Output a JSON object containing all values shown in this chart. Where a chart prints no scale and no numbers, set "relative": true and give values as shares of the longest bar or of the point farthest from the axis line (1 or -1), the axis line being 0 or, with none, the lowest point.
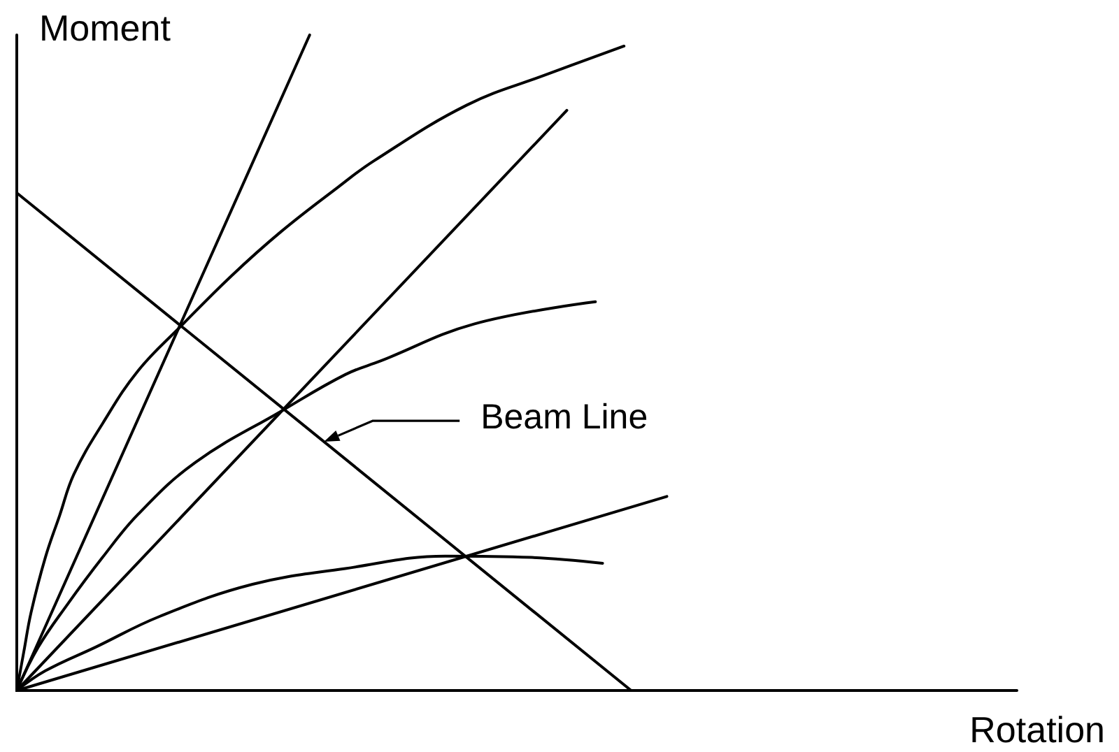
{
  "chart_data": {
    "type": "line",
    "relative": true,
    "xlabel": "Rotation",
    "ylabel": "Moment",
    "categories": [
      null,
      null,
      null,
      null,
      null,
      null,
      null,
      null,
      null,
      null,
      null,
      null,
      null,
      null,
      null,
      null,
      null,
      null,
      null,
      null,
      null,
      null,
      null,
      null,
      null,
      null,
      null,
      null,
      null,
      null,
      null,
      null,
      null,
      null,
      null,
      null,
      null,
      null,
      null,
      null,
      null,
      null,
      null,
      null,
      null,
      null,
      null,
      null,
      null,
      null,
      null,
      null,
      null,
      null,
      null,
      null,
      null,
      null,
      null,
      null,
      null,
      null,
      null,
      null,
      null,
      null,
      null,
      null,
      null,
      null,
      null,
      null,
      null,
      null,
      null,
      null,
      null,
      null,
      null,
      null,
      null,
      null,
      null,
      null,
      null,
      null,
      null,
      null,
      null,
      null,
      null,
      null,
      null,
      null,
      null,
      null,
      null,
      null,
      null,
      null,
      null,
      null,
      null,
      null,
      null,
      null,
      null,
      null,
      null,
      null,
      null,
      null,
      null,
      null,
      null,
      null,
      null,
      null,
      null,
      null,
      null,
      null,
      null,
      null,
      null,
      null,
      null,
      null,
      null,
      null,
      null,
      null,
      null,
      null,
      null,
      null,
      null,
      null,
      null,
      null,
      null
    ],
    "series": [
      {
        "color": "#000000",
        "values": [
          0,
          null,
          null,
          null,
          null,
          null,
          null,
          null,
          null,
          null,
          null,
          null,
          null,
          null,
          null,
          null,
          null,
          null,
          null,
          null,
          null,
          null,
          null,
          null,
          null,
          null,
          null,
          null,
          null,
          null,
          null,
          null,
          null,
          null,
          null,
          null,
          null,
          null,
          null,
          null,
          null,
          1,
          null,
          null,
          null,
          null,
          null,
          null,
          null,
          null,
          null,
          null,
          null,
          null,
          null,
          null,
          null,
          null,
          null,
          null,
          null,
          null,
          null,
          null,
          null,
          null,
          null,
          null,
          null,
          null,
          null,
          null,
          null,
          null,
          null,
          null,
          null,
          null,
          null,
          null,
          null,
          null,
          null,
          null,
          null,
          null,
          null,
          null,
          null,
          null,
          null,
          null,
          null,
          null,
          null,
          null,
          null,
          null,
          null,
          null,
          null,
          null,
          null,
          null,
          null,
          null,
          null,
          null,
          null,
          null,
          null,
          null,
          null,
          null,
          null,
          null,
          null,
          null,
          null,
          null,
          null,
          null,
          null,
          null,
          null,
          null,
          null,
          null,
          null,
          null,
          null,
          null,
          null,
          null,
          null,
          null,
          null,
          null,
          null,
          null,
          null
        ]
      },
      {
        "color": "#000000",
        "values": [
          0,
          0.06,
          0.119,
          null,
          0.203,
          null,
          0.267,
          null,
          0.33,
          null,
          null,
          null,
          0.407,
          null,
          null,
          null,
          null,
          0.488,
          null,
          null,
          null,
          null,
          null,
          0.556,
          null,
          null,
          null,
          null,
          null,
          null,
          0.632,
          null,
          null,
          null,
          null,
          null,
          null,
          0.7,
          null,
          null,
          null,
          null,
          null,
          null,
          null,
          0.768,
          null,
          null,
          null,
          null,
          0.808,
          null,
          null,
          null,
          null,
          null,
          null,
          null,
          null,
          null,
          null,
          null,
          null,
          0.893,
          null,
          null,
          null,
          null,
          null,
          null,
          null,
          null,
          null,
          null,
          0.939,
          null,
          null,
          null,
          null,
          null,
          null,
          null,
          null,
          null,
          null,
          0.983,
          null,
          null,
          null,
          null,
          null,
          null,
          null,
          null,
          null,
          null,
          null,
          null,
          null,
          null,
          null,
          null,
          null,
          null,
          null,
          null,
          null,
          null,
          null,
          null,
          null,
          null,
          null,
          null,
          null,
          null,
          null,
          null,
          null,
          null,
          null,
          null,
          null,
          null,
          null,
          null,
          null,
          null,
          null,
          null,
          null,
          null,
          null,
          null,
          null,
          null,
          null,
          null,
          null,
          null,
          null
        ]
      },
      {
        "color": "#000000",
        "values": [
          0,
          null,
          null,
          null,
          null,
          null,
          null,
          null,
          null,
          null,
          null,
          null,
          null,
          null,
          null,
          null,
          null,
          null,
          null,
          null,
          null,
          null,
          null,
          null,
          null,
          null,
          null,
          null,
          null,
          null,
          null,
          null,
          null,
          null,
          null,
          null,
          null,
          null,
          null,
          null,
          null,
          null,
          null,
          null,
          null,
          null,
          null,
          null,
          null,
          null,
          null,
          null,
          null,
          null,
          null,
          null,
          null,
          null,
          null,
          null,
          null,
          null,
          null,
          null,
          null,
          null,
          null,
          null,
          null,
          null,
          null,
          null,
          null,
          null,
          null,
          null,
          null,
          0.885,
          null,
          null,
          null,
          null,
          null,
          null,
          null,
          null,
          null,
          null,
          null,
          null,
          null,
          null,
          null,
          null,
          null,
          null,
          null,
          null,
          null,
          null,
          null,
          null,
          null,
          null,
          null,
          null,
          null,
          null,
          null,
          null,
          null,
          null,
          null,
          null,
          null,
          null,
          null,
          null,
          null,
          null,
          null,
          null,
          null,
          null,
          null,
          null,
          null,
          null,
          null,
          null,
          null,
          null,
          null,
          null,
          null,
          null,
          null,
          null,
          null,
          null,
          null
        ]
      },
      {
        "color": "#000000",
        "values": [
          0,
          null,
          null,
          0.066,
          null,
          null,
          null,
          0.13,
          null,
          null,
          null,
          null,
          0.203,
          null,
          null,
          null,
          null,
          0.269,
          null,
          null,
          null,
          null,
          null,
          null,
          null,
          0.348,
          null,
          null,
          null,
          null,
          null,
          null,
          null,
          null,
          null,
          null,
          null,
          0.426,
          null,
          null,
          null,
          null,
          null,
          null,
          null,
          null,
          0.482,
          null,
          null,
          null,
          null,
          0.503,
          null,
          null,
          null,
          null,
          null,
          null,
          null,
          null,
          null,
          null,
          null,
          null,
          0.559,
          null,
          null,
          null,
          null,
          null,
          null,
          null,
          null,
          null,
          null,
          null,
          null,
          null,
          null,
          null,
          null,
          0.593,
          null,
          null,
          null,
          null,
          null,
          null,
          null,
          null,
          null,
          null,
          null,
          null,
          null,
          null,
          null,
          null,
          null,
          null,
          null,
          null,
          null,
          null,
          null,
          null,
          null,
          null,
          null,
          null,
          null,
          null,
          null,
          null,
          null,
          null,
          null,
          null,
          null,
          null,
          null,
          null,
          null,
          null,
          null,
          null,
          null,
          null,
          null,
          null,
          null,
          null,
          null,
          null,
          null,
          null,
          null,
          null,
          null,
          null,
          null
        ]
      },
      {
        "color": "#000000",
        "values": [
          0,
          null,
          null,
          null,
          null,
          null,
          null,
          null,
          null,
          null,
          null,
          null,
          null,
          null,
          null,
          null,
          null,
          null,
          null,
          null,
          null,
          null,
          null,
          null,
          null,
          null,
          null,
          null,
          null,
          null,
          null,
          null,
          null,
          null,
          null,
          null,
          null,
          null,
          null,
          null,
          null,
          null,
          null,
          null,
          null,
          null,
          null,
          null,
          null,
          null,
          null,
          null,
          null,
          null,
          null,
          null,
          null,
          null,
          null,
          null,
          null,
          null,
          null,
          null,
          null,
          null,
          null,
          null,
          null,
          null,
          null,
          null,
          null,
          null,
          null,
          null,
          null,
          null,
          null,
          null,
          null,
          null,
          null,
          null,
          null,
          null,
          null,
          null,
          null,
          null,
          null,
          0.296,
          null,
          null,
          null,
          null,
          null,
          null,
          null,
          null,
          null,
          null,
          null,
          null,
          null,
          null,
          null,
          null,
          null,
          null,
          null,
          null,
          null,
          null,
          null,
          null,
          null,
          null,
          null,
          null,
          null,
          null,
          null,
          null,
          null,
          null,
          null,
          null,
          null,
          null,
          null,
          null,
          null,
          null,
          null,
          null,
          null,
          null,
          null,
          null,
          null
        ]
      },
      {
        "color": "#000000",
        "values": [
          0,
          null,
          null,
          null,
          0.03,
          null,
          null,
          null,
          null,
          null,
          null,
          0.066,
          null,
          null,
          null,
          null,
          null,
          null,
          null,
          null,
          0.113,
          null,
          null,
          null,
          null,
          null,
          null,
          null,
          null,
          null,
          null,
          null,
          null,
          0.162,
          null,
          null,
          null,
          null,
          null,
          null,
          null,
          null,
          null,
          null,
          null,
          null,
          0.186,
          null,
          null,
          null,
          null,
          null,
          null,
          null,
          null,
          null,
          null,
          null,
          null,
          null,
          0.205,
          null,
          null,
          null,
          null,
          null,
          null,
          null,
          null,
          null,
          null,
          null,
          0.203,
          null,
          null,
          null,
          null,
          null,
          null,
          null,
          null,
          null,
          0.194,
          null,
          null,
          null,
          null,
          null,
          null,
          null,
          null,
          null,
          null,
          null,
          null,
          null,
          null,
          null,
          null,
          null,
          null,
          null,
          null,
          null,
          null,
          null,
          null,
          null,
          null,
          null,
          null,
          null,
          null,
          null,
          null,
          null,
          null,
          null,
          null,
          null,
          null,
          null,
          null,
          null,
          null,
          null,
          null,
          null,
          null,
          null,
          null,
          null,
          null,
          null,
          null,
          null,
          null,
          null,
          null,
          null,
          null
        ]
      },
      {
        "name": "Beam Line",
        "color": "#000000",
        "values": [
          0.759,
          null,
          null,
          null,
          null,
          null,
          null,
          null,
          null,
          null,
          null,
          null,
          null,
          null,
          null,
          null,
          null,
          null,
          null,
          null,
          null,
          null,
          null,
          null,
          null,
          null,
          null,
          null,
          null,
          null,
          null,
          null,
          null,
          null,
          null,
          null,
          null,
          null,
          null,
          null,
          null,
          null,
          null,
          null,
          null,
          null,
          null,
          null,
          null,
          null,
          null,
          null,
          null,
          null,
          null,
          null,
          null,
          null,
          null,
          null,
          null,
          null,
          null,
          null,
          null,
          null,
          null,
          null,
          null,
          null,
          null,
          null,
          null,
          null,
          null,
          null,
          null,
          null,
          null,
          null,
          null,
          null,
          null,
          null,
          null,
          null,
          0,
          null,
          null,
          null,
          null,
          null,
          null,
          null,
          null,
          null,
          null,
          null,
          null,
          null,
          null,
          null,
          null,
          null,
          null,
          null,
          null,
          null,
          null,
          null,
          null,
          null,
          null,
          null,
          null,
          null,
          null,
          null,
          null,
          null,
          null,
          null,
          null,
          null,
          null,
          null,
          null,
          null,
          null,
          null,
          null,
          null,
          null,
          null,
          null,
          null,
          null,
          null,
          null,
          null,
          null
        ]
      }
    ]
  }
}
